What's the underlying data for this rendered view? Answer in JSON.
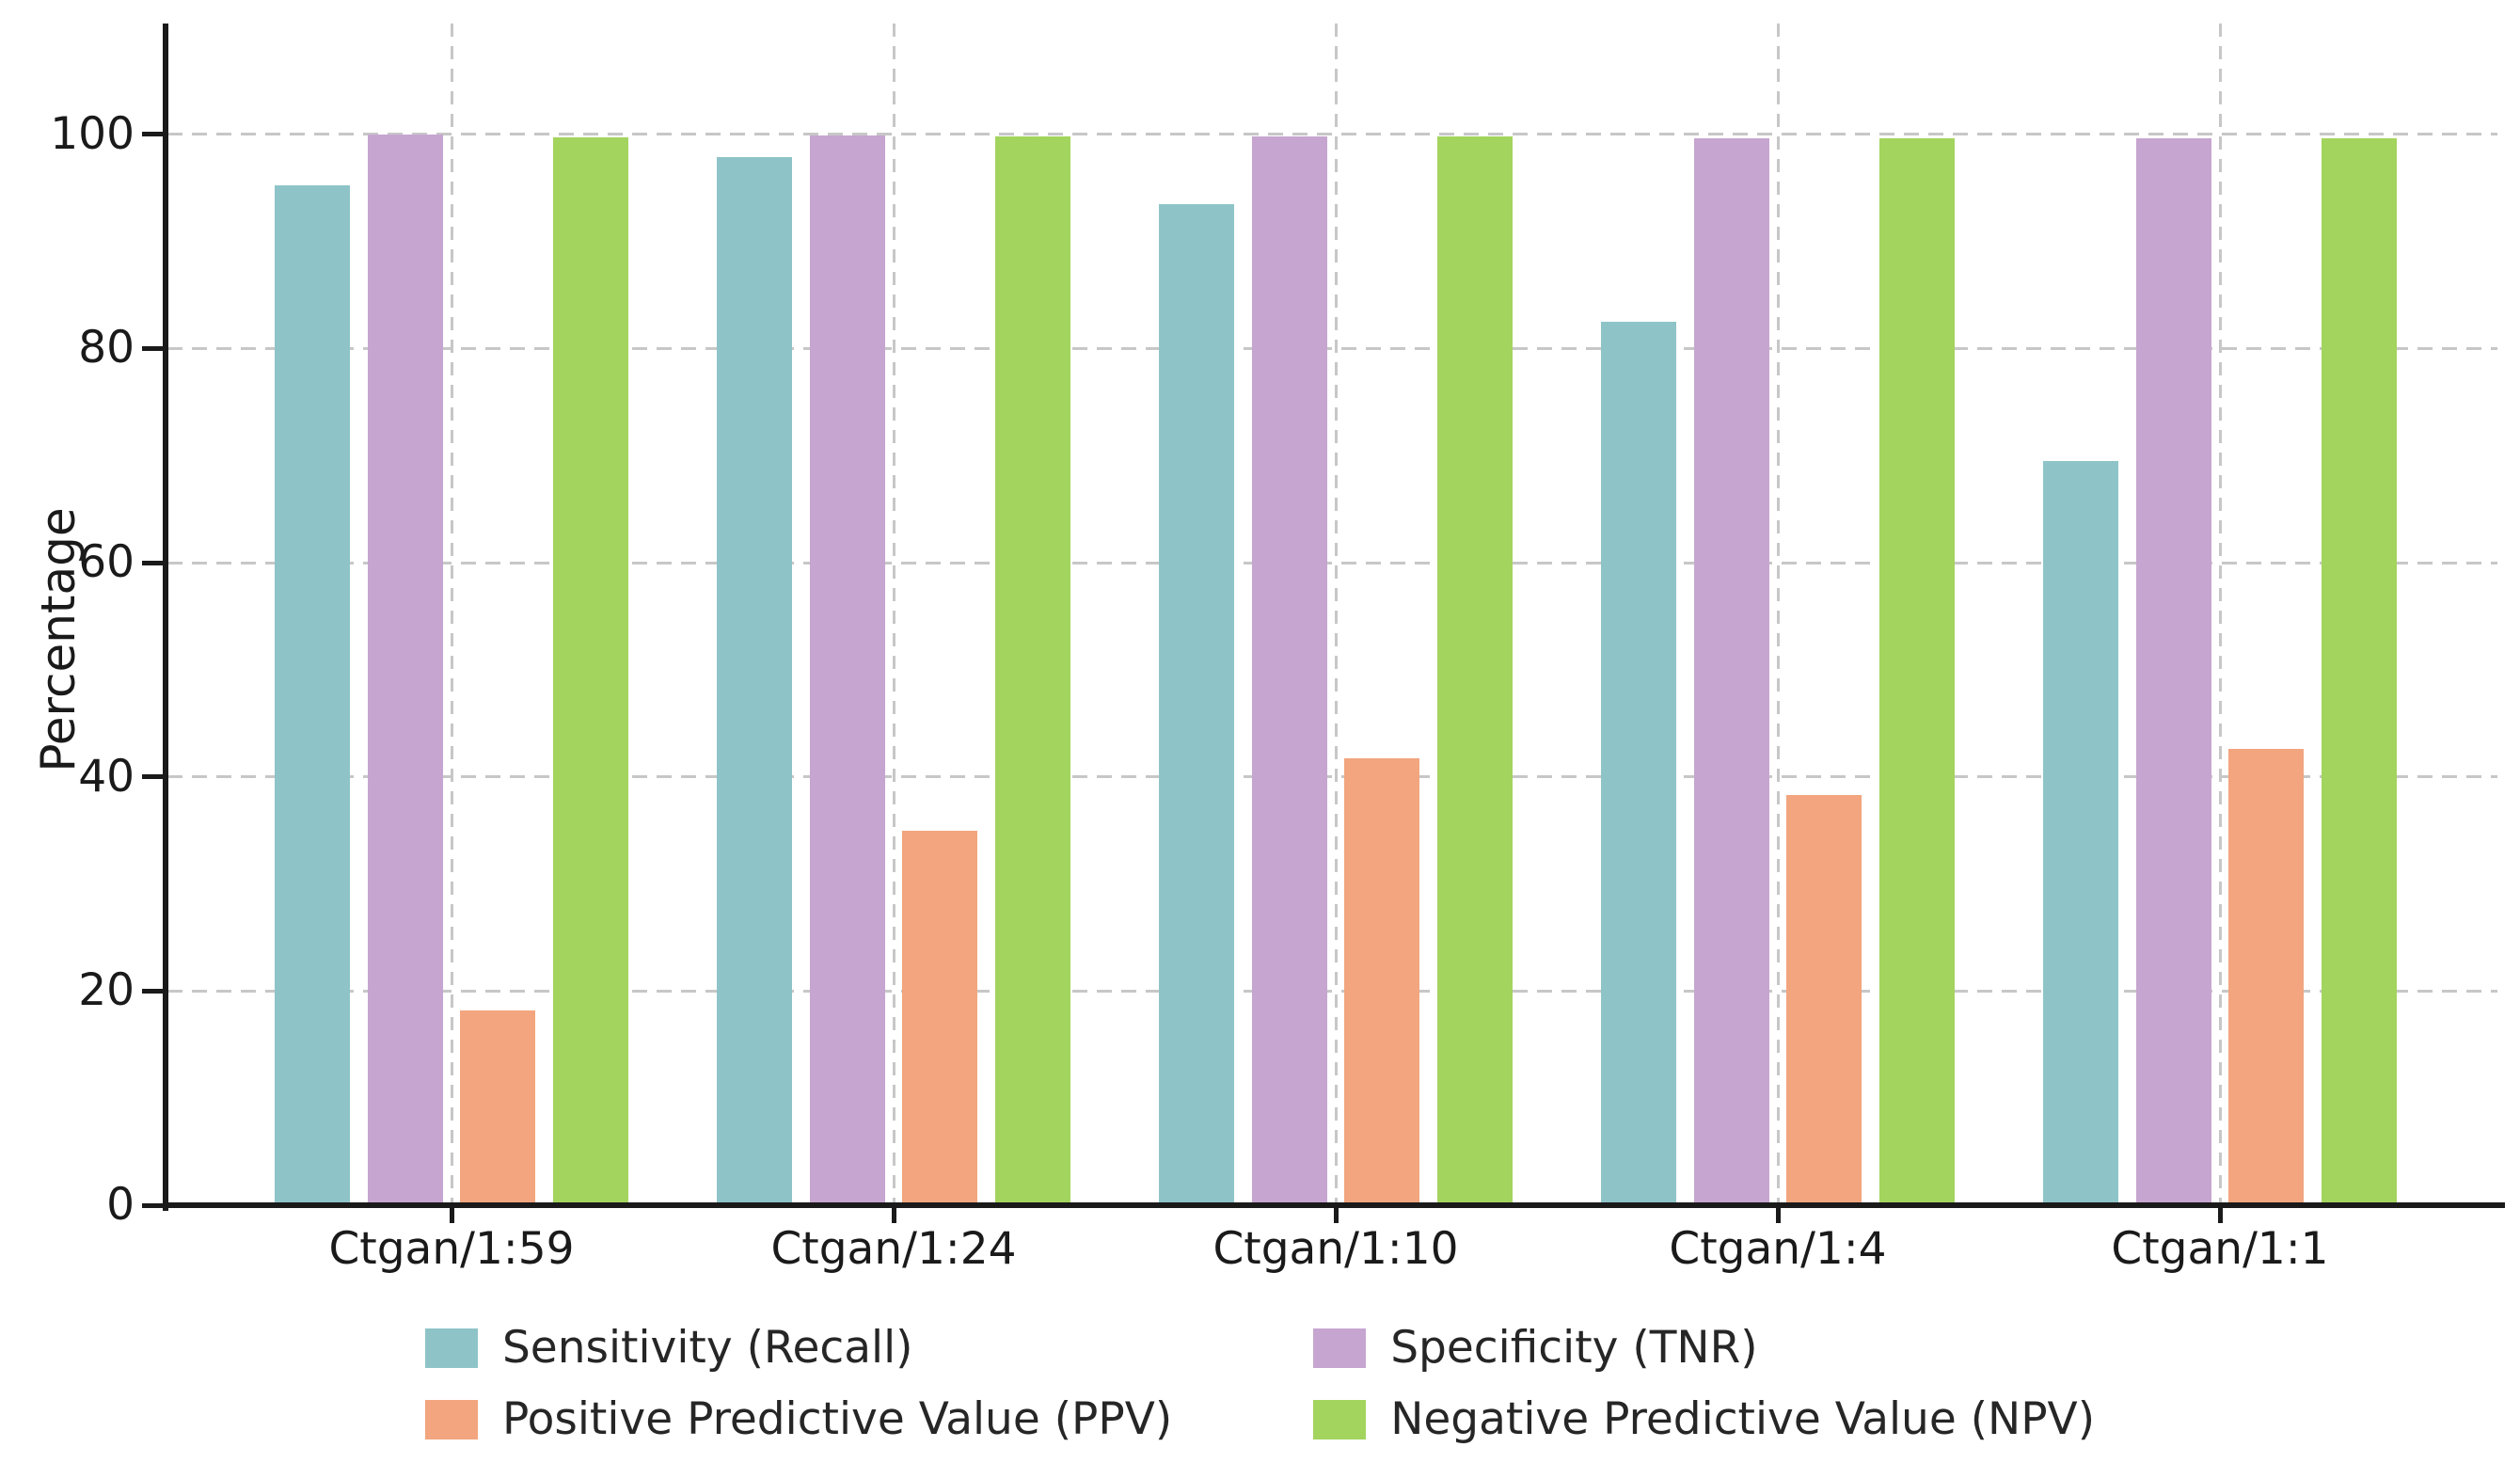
{
  "chart_data": {
    "type": "bar",
    "title": "",
    "xlabel": "",
    "ylabel": "Percentage",
    "ylim": [
      0,
      110.3
    ],
    "yticks": [
      0,
      20,
      40,
      60,
      80,
      100
    ],
    "grid": "dashed gray horizontal lines at y ticks and dashed vertical lines at category centers",
    "legend_position": "bottom center, two columns, no frame",
    "categories": [
      "Ctgan/1:59",
      "Ctgan/1:24",
      "Ctgan/1:10",
      "Ctgan/1:4",
      "Ctgan/1:1"
    ],
    "series": [
      {
        "name": "Sensitivity (Recall)",
        "color": "#8EC4C8",
        "values": [
          95.2,
          97.9,
          93.5,
          82.5,
          69.5
        ]
      },
      {
        "name": "Specificity (TNR)",
        "color": "#C6A5D0",
        "values": [
          100.0,
          99.9,
          99.8,
          99.6,
          99.6
        ]
      },
      {
        "name": "Positive Predictive Value (PPV)",
        "color": "#F2A57E",
        "values": [
          18.2,
          35.0,
          41.7,
          38.3,
          42.6
        ]
      },
      {
        "name": "Negative Predictive Value (NPV)",
        "color": "#A3D45E",
        "values": [
          99.7,
          99.8,
          99.8,
          99.6,
          99.6
        ]
      }
    ]
  },
  "colors": {
    "background": "#FFFFFF",
    "grid": "#C7C7C7",
    "axis": "#1A1A1A",
    "tick_text": "#1A1A1A",
    "legend_text": "#262626"
  }
}
